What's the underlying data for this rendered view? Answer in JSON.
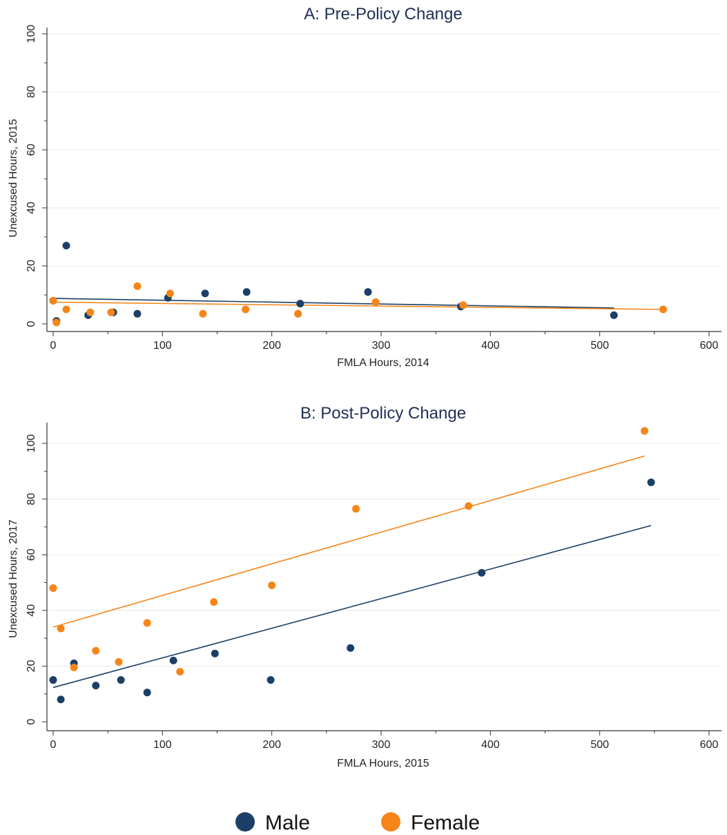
{
  "colors": {
    "male": "#1b3f66",
    "female": "#f58518",
    "grid": "#e8e8e8",
    "axis": "#333333",
    "title": "#1f2f55"
  },
  "legend": {
    "placement": "bottom-center",
    "items": [
      {
        "label": "Male",
        "color": "#1b3f66"
      },
      {
        "label": "Female",
        "color": "#f58518"
      }
    ]
  },
  "chart_data": [
    {
      "type": "scatter",
      "title": "A: Pre-Policy Change",
      "xlabel": "FMLA Hours, 2014",
      "ylabel": "Unexcused Hours, 2015",
      "xlim": [
        0,
        600
      ],
      "ylim": [
        0,
        100
      ],
      "xticks": [
        0,
        100,
        200,
        300,
        400,
        500,
        600
      ],
      "yticks": [
        0,
        20,
        40,
        60,
        80,
        100
      ],
      "grid": true,
      "series": [
        {
          "name": "Male",
          "points": [
            [
              0,
              8
            ],
            [
              3,
              1
            ],
            [
              12,
              27
            ],
            [
              32,
              3
            ],
            [
              55,
              4
            ],
            [
              77,
              3.5
            ],
            [
              105,
              9
            ],
            [
              139,
              10.5
            ],
            [
              177,
              11
            ],
            [
              226,
              7
            ],
            [
              288,
              11
            ],
            [
              373,
              6
            ],
            [
              513,
              3
            ]
          ],
          "fit": [
            [
              0,
              8.8
            ],
            [
              513,
              5.5
            ]
          ]
        },
        {
          "name": "Female",
          "points": [
            [
              0,
              8
            ],
            [
              3,
              0.5
            ],
            [
              12,
              5
            ],
            [
              34,
              4
            ],
            [
              53,
              4
            ],
            [
              77,
              13
            ],
            [
              107,
              10.5
            ],
            [
              137,
              3.5
            ],
            [
              176,
              5
            ],
            [
              224,
              3.5
            ],
            [
              295,
              7.5
            ],
            [
              375,
              6.5
            ],
            [
              558,
              5
            ]
          ],
          "fit": [
            [
              0,
              7.5
            ],
            [
              558,
              5
            ]
          ]
        }
      ]
    },
    {
      "type": "scatter",
      "title": "B: Post-Policy Change",
      "xlabel": "FMLA Hours, 2015",
      "ylabel": "Unexcused Hours, 2017",
      "xlim": [
        0,
        600
      ],
      "ylim": [
        0,
        105
      ],
      "xticks": [
        0,
        100,
        200,
        300,
        400,
        500,
        600
      ],
      "yticks": [
        0,
        20,
        40,
        60,
        80,
        100
      ],
      "grid": true,
      "series": [
        {
          "name": "Male",
          "points": [
            [
              0,
              15
            ],
            [
              7,
              8
            ],
            [
              19,
              21
            ],
            [
              39,
              13
            ],
            [
              62,
              15
            ],
            [
              86,
              10.5
            ],
            [
              110,
              22
            ],
            [
              148,
              24.5
            ],
            [
              199,
              15
            ],
            [
              272,
              26.5
            ],
            [
              392,
              53.5
            ],
            [
              547,
              86
            ]
          ],
          "fit": [
            [
              0,
              12.3
            ],
            [
              547,
              70.5
            ]
          ]
        },
        {
          "name": "Female",
          "points": [
            [
              0,
              48
            ],
            [
              7,
              33.5
            ],
            [
              19,
              19.5
            ],
            [
              39,
              25.5
            ],
            [
              60,
              21.5
            ],
            [
              86,
              35.5
            ],
            [
              116,
              18
            ],
            [
              147,
              43
            ],
            [
              200,
              49
            ],
            [
              277,
              76.5
            ],
            [
              380,
              77.5
            ],
            [
              541,
              104.5
            ]
          ],
          "fit": [
            [
              0,
              34
            ],
            [
              541,
              95.5
            ]
          ]
        }
      ]
    }
  ]
}
